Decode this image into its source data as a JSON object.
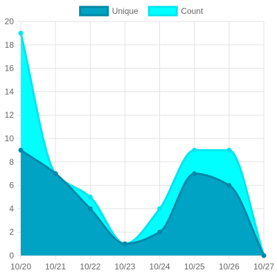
{
  "chart_data": {
    "type": "area",
    "x": [
      "10/20",
      "10/21",
      "10/22",
      "10/23",
      "10/24",
      "10/25",
      "10/26",
      "10/27"
    ],
    "series": [
      {
        "name": "Unique",
        "values": [
          9,
          7,
          4,
          1,
          2,
          7,
          6,
          0
        ],
        "fill": "#00a3c4",
        "stroke": "#0088a8"
      },
      {
        "name": "Count",
        "values": [
          19,
          7,
          5,
          1,
          4,
          9,
          9,
          0
        ],
        "fill": "#00ffff",
        "stroke": "#00e5f0"
      }
    ],
    "ylim": [
      0,
      20
    ],
    "yticks": [
      "0",
      "2",
      "4",
      "6",
      "8",
      "10",
      "12",
      "14",
      "16",
      "18",
      "20"
    ],
    "grid": true,
    "legend": "top-center",
    "title": "",
    "xlabel": "",
    "ylabel": ""
  }
}
